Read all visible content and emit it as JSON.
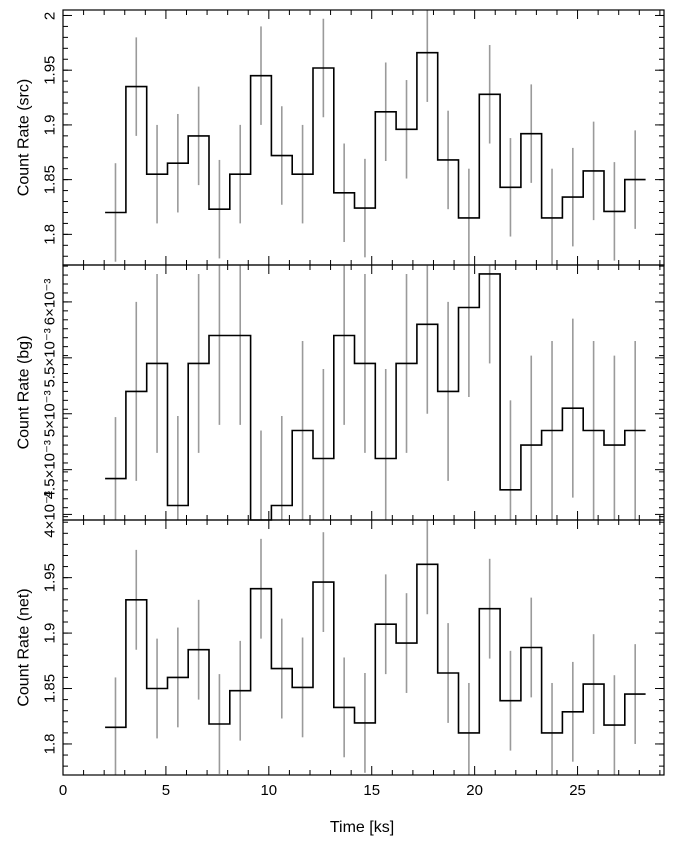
{
  "chart_data": {
    "type": "line",
    "x_axis": {
      "label": "Time [ks]",
      "ticks": [
        0,
        5,
        10,
        15,
        20,
        25
      ],
      "range": [
        0,
        29.2
      ]
    },
    "bins": {
      "centers": [
        2.55,
        3.56,
        4.57,
        5.58,
        6.59,
        7.6,
        8.61,
        9.62,
        10.63,
        11.64,
        12.65,
        13.66,
        14.67,
        15.68,
        16.69,
        17.7,
        18.71,
        19.72,
        20.73,
        21.74,
        22.75,
        23.76,
        24.77,
        25.78,
        26.79,
        27.8
      ],
      "half_width": 0.505
    },
    "panels": [
      {
        "id": "src",
        "ylabel": "Count Rate (src)",
        "y_range": [
          1.772,
          2.005
        ],
        "y_ticks": [
          1.8,
          1.85,
          1.9,
          1.95,
          2
        ],
        "y_tick_labels": [
          "1.8",
          "1.85",
          "1.9",
          "1.95",
          "2"
        ],
        "values": [
          1.82,
          1.935,
          1.855,
          1.865,
          1.89,
          1.823,
          1.855,
          1.945,
          1.872,
          1.855,
          1.952,
          1.838,
          1.824,
          1.912,
          1.896,
          1.966,
          1.868,
          1.815,
          1.928,
          1.843,
          1.892,
          1.815,
          1.834,
          1.858,
          1.821,
          1.85
        ],
        "errors": [
          0.045,
          0.045,
          0.045,
          0.045,
          0.045,
          0.045,
          0.045,
          0.045,
          0.045,
          0.045,
          0.045,
          0.045,
          0.045,
          0.045,
          0.045,
          0.045,
          0.045,
          0.045,
          0.045,
          0.045,
          0.045,
          0.045,
          0.045,
          0.045,
          0.045,
          0.045
        ]
      },
      {
        "id": "bg",
        "ylabel": "Count Rate (bg)",
        "y_range": [
          4.05,
          6.33
        ],
        "y_ticks": [
          4.1,
          4.5,
          5,
          5.5,
          6
        ],
        "y_tick_labels": [
          "4×10⁻³",
          "4.5×10⁻³",
          "5×10⁻³",
          "5.5×10⁻³",
          "6×10⁻³"
        ],
        "y_scale_note": "values in units of 1e-3",
        "values": [
          4.42,
          5.2,
          5.45,
          4.18,
          5.45,
          5.7,
          5.7,
          4.05,
          4.18,
          4.85,
          4.6,
          5.7,
          5.45,
          4.6,
          5.45,
          5.8,
          5.2,
          5.95,
          6.25,
          4.32,
          4.72,
          4.85,
          5.05,
          4.85,
          4.72,
          4.85
        ],
        "errors": [
          0.55,
          0.8,
          0.8,
          0.8,
          0.8,
          0.8,
          0.8,
          0.8,
          0.8,
          0.8,
          0.8,
          0.8,
          0.8,
          0.8,
          0.8,
          0.8,
          0.8,
          0.8,
          0.8,
          0.8,
          0.8,
          0.8,
          0.8,
          0.8,
          0.8,
          0.8
        ]
      },
      {
        "id": "net",
        "ylabel": "Count Rate (net)",
        "y_range": [
          1.772,
          2.002
        ],
        "y_ticks": [
          1.8,
          1.85,
          1.9,
          1.95
        ],
        "y_tick_labels": [
          "1.8",
          "1.85",
          "1.9",
          "1.95"
        ],
        "values": [
          1.815,
          1.93,
          1.85,
          1.86,
          1.885,
          1.818,
          1.848,
          1.94,
          1.868,
          1.851,
          1.946,
          1.833,
          1.819,
          1.908,
          1.891,
          1.962,
          1.864,
          1.81,
          1.922,
          1.839,
          1.887,
          1.81,
          1.829,
          1.854,
          1.817,
          1.845
        ],
        "errors": [
          0.045,
          0.045,
          0.045,
          0.045,
          0.045,
          0.045,
          0.045,
          0.045,
          0.045,
          0.045,
          0.045,
          0.045,
          0.045,
          0.045,
          0.045,
          0.045,
          0.045,
          0.045,
          0.045,
          0.045,
          0.045,
          0.045,
          0.045,
          0.045,
          0.045,
          0.045
        ]
      }
    ],
    "colors": {
      "steps": "#000000",
      "error_bars": "#9a9a9a"
    },
    "grid": false
  }
}
